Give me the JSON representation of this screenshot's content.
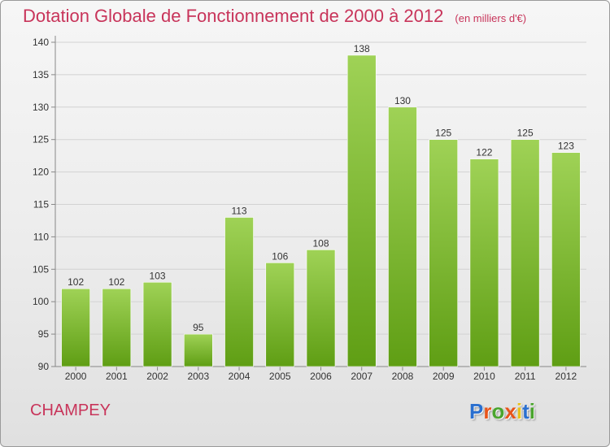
{
  "title": "Dotation Globale de Fonctionnement de 2000 à 2012",
  "unit": "(en milliers d'€)",
  "commune": "CHAMPEY",
  "logo": {
    "text": "Proxiti",
    "colors": [
      "#2a6fcf",
      "#e8541a",
      "#4aa52e",
      "#e8541a",
      "#e8c21a",
      "#2a6fcf",
      "#4aa52e"
    ]
  },
  "colors": {
    "accent": "#c8345a",
    "bar_top": "#9fd256",
    "bar_bottom": "#5f9e14"
  },
  "chart_data": {
    "type": "bar",
    "categories": [
      "2000",
      "2001",
      "2002",
      "2003",
      "2004",
      "2005",
      "2006",
      "2007",
      "2008",
      "2009",
      "2010",
      "2011",
      "2012"
    ],
    "values": [
      102,
      102,
      103,
      95,
      113,
      106,
      108,
      138,
      130,
      125,
      122,
      125,
      123
    ],
    "ylim": [
      90,
      140
    ],
    "yticks": [
      90,
      95,
      100,
      105,
      110,
      115,
      120,
      125,
      130,
      135,
      140
    ],
    "grid": true,
    "data_labels": true
  }
}
